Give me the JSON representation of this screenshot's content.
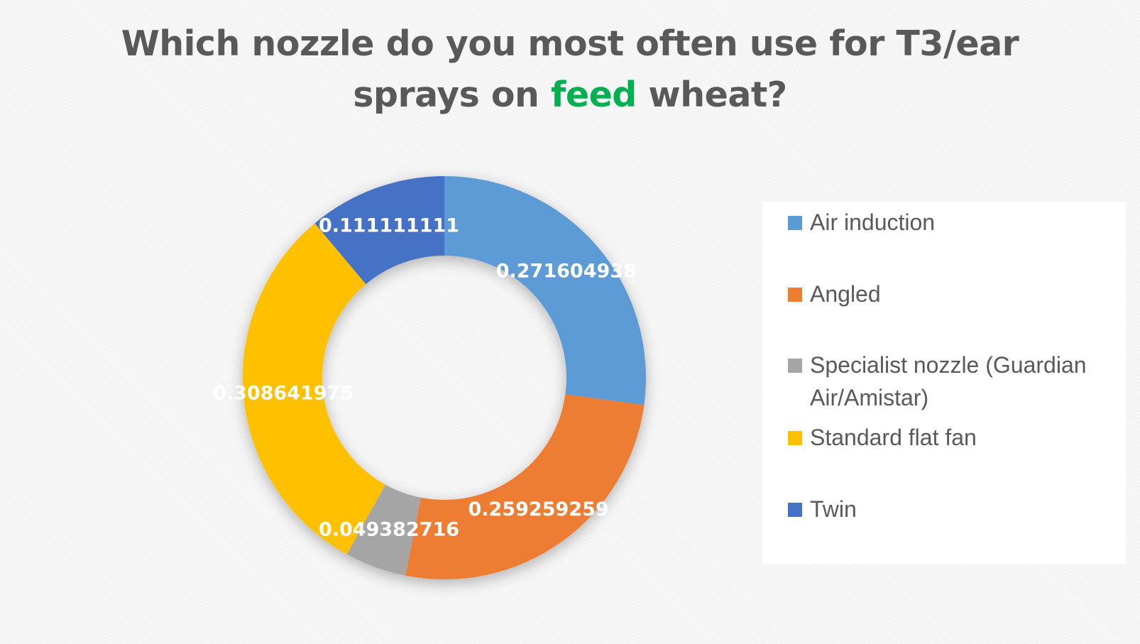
{
  "title": {
    "line1": "Which nozzle do you most often use for T3/ear",
    "line2_before": "sprays on ",
    "line2_highlight": "feed",
    "line2_after": " wheat?"
  },
  "colors": {
    "title_text": "#595959",
    "title_highlight": "#00b050",
    "label_text": "#ffffff"
  },
  "chart_data": {
    "type": "pie",
    "variant": "doughnut",
    "title": "Which nozzle do you most often use for T3/ear sprays on feed wheat?",
    "legend_position": "right",
    "start_angle_deg": 0,
    "direction": "clockwise",
    "slices": [
      {
        "label": "Air induction",
        "value": 0.271604938,
        "value_label": "0.271604938",
        "color": "#5b9bd5"
      },
      {
        "label": "Angled",
        "value": 0.259259259,
        "value_label": "0.259259259",
        "color": "#ed7d31"
      },
      {
        "label": "Specialist nozzle (Guardian Air/Amistar)",
        "value": 0.049382716,
        "value_label": "0.049382716",
        "color": "#a5a5a5"
      },
      {
        "label": "Standard flat fan",
        "value": 0.308641975,
        "value_label": "0.308641975",
        "color": "#ffc000"
      },
      {
        "label": "Twin",
        "value": 0.111111111,
        "value_label": "0.111111111",
        "color": "#4472c4"
      }
    ]
  }
}
